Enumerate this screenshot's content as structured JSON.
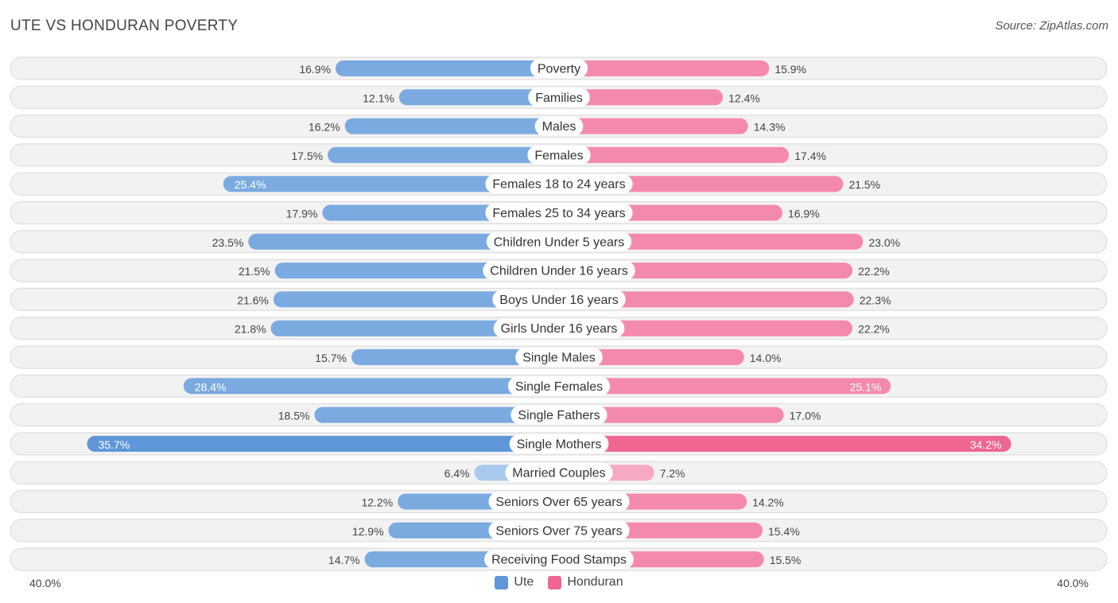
{
  "title": "UTE VS HONDURAN POVERTY",
  "source": "Source: ZipAtlas.com",
  "axis": {
    "left_label": "40.0%",
    "right_label": "40.0%"
  },
  "legend": {
    "left": "Ute",
    "right": "Honduran"
  },
  "colors": {
    "ute": "#7aaae0",
    "honduran": "#f48aab",
    "ute_strong": "#5e96d9",
    "honduran_strong": "#ef6690"
  },
  "chart_data": {
    "type": "bar",
    "orientation": "horizontal-diverging",
    "title": "UTE VS HONDURAN POVERTY",
    "xlim": [
      0,
      40.0
    ],
    "unit": "%",
    "categories": [
      "Poverty",
      "Families",
      "Males",
      "Females",
      "Females 18 to 24 years",
      "Females 25 to 34 years",
      "Children Under 5 years",
      "Children Under 16 years",
      "Boys Under 16 years",
      "Girls Under 16 years",
      "Single Males",
      "Single Females",
      "Single Fathers",
      "Single Mothers",
      "Married Couples",
      "Seniors Over 65 years",
      "Seniors Over 75 years",
      "Receiving Food Stamps"
    ],
    "series": [
      {
        "name": "Ute",
        "values": [
          16.9,
          12.1,
          16.2,
          17.5,
          25.4,
          17.9,
          23.5,
          21.5,
          21.6,
          21.8,
          15.7,
          28.4,
          18.5,
          35.7,
          6.4,
          12.2,
          12.9,
          14.7
        ]
      },
      {
        "name": "Honduran",
        "values": [
          15.9,
          12.4,
          14.3,
          17.4,
          21.5,
          16.9,
          23.0,
          22.2,
          22.3,
          22.2,
          14.0,
          25.1,
          17.0,
          34.2,
          7.2,
          14.2,
          15.4,
          15.5
        ]
      }
    ]
  }
}
